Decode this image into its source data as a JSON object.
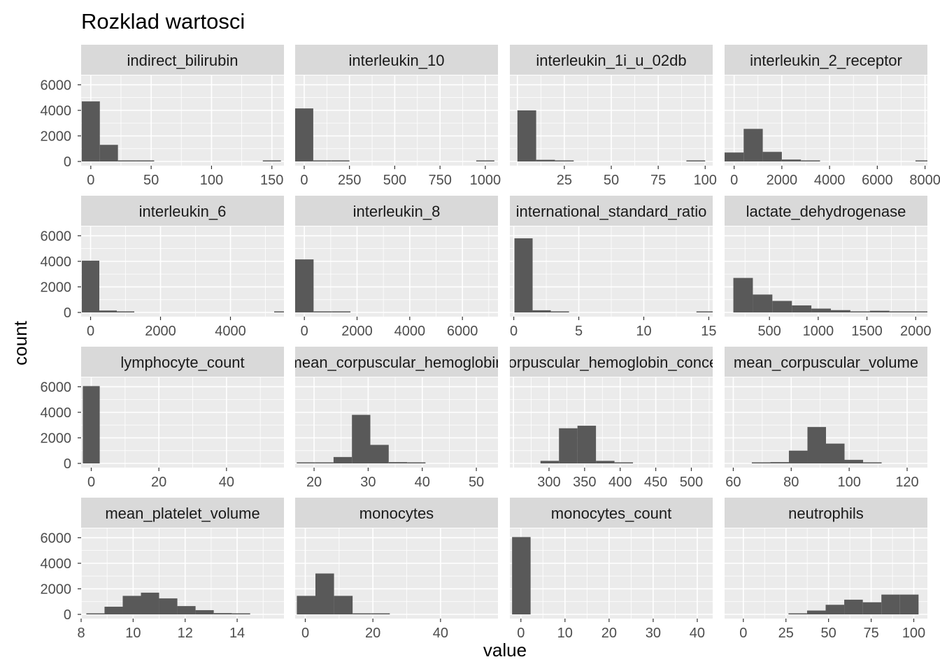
{
  "chart_data": {
    "type": "histogram-facets",
    "title": "Rozklad wartosci",
    "xlabel": "value",
    "ylabel": "count",
    "y_ticks": [
      0,
      2000,
      4000,
      6000
    ],
    "ylim": [
      0,
      6400
    ],
    "colors": {
      "panel_bg": "#ebebeb",
      "grid": "#ffffff",
      "strip_bg": "#d9d9d9",
      "bar": "#595959",
      "text": "#1a1a1a",
      "tick_text": "#4d4d4d"
    },
    "facets": [
      {
        "label": "indirect_bilirubin",
        "xlim": [
          -8,
          160
        ],
        "xticks": [
          0,
          50,
          100,
          150
        ],
        "bin_start": -7.5,
        "bin_width": 15,
        "counts": [
          4700,
          1300,
          80,
          10,
          0,
          0,
          0,
          0,
          0,
          0,
          5
        ]
      },
      {
        "label": "interleukin_10",
        "xlim": [
          -50,
          1070
        ],
        "xticks": [
          0,
          250,
          500,
          750,
          1000
        ],
        "bin_start": -50,
        "bin_width": 100,
        "counts": [
          4150,
          60,
          10,
          0,
          0,
          0,
          0,
          0,
          0,
          0,
          5
        ]
      },
      {
        "label": "interleukin_1i_u_02db",
        "xlim": [
          -4,
          104
        ],
        "xticks": [
          25,
          50,
          75,
          100
        ],
        "bin_start": 0,
        "bin_width": 10,
        "counts": [
          4000,
          130,
          10,
          0,
          0,
          0,
          0,
          0,
          0,
          5
        ]
      },
      {
        "label": "interleukin_2_receptor",
        "xlim": [
          -400,
          8100
        ],
        "xticks": [
          0,
          2000,
          4000,
          6000,
          8000
        ],
        "bin_start": -400,
        "bin_width": 800,
        "counts": [
          700,
          2550,
          750,
          150,
          10,
          0,
          0,
          0,
          0,
          0,
          5
        ]
      },
      {
        "label": "interleukin_6",
        "xlim": [
          -270,
          5530
        ],
        "xticks": [
          0,
          2000,
          4000
        ],
        "bin_start": -250,
        "bin_width": 500,
        "counts": [
          4050,
          150,
          10,
          0,
          0,
          0,
          0,
          0,
          0,
          0,
          0,
          80
        ]
      },
      {
        "label": "interleukin_8",
        "xlim": [
          -350,
          7350
        ],
        "xticks": [
          0,
          2000,
          4000,
          6000
        ],
        "bin_start": -350,
        "bin_width": 700,
        "counts": [
          4150,
          60,
          5,
          0,
          0,
          0,
          0,
          0,
          0,
          0,
          0
        ]
      },
      {
        "label": "international_standard_ratio",
        "xlim": [
          -0.3,
          15.3
        ],
        "xticks": [
          0,
          5,
          10,
          15
        ],
        "bin_start": 0.05,
        "bin_width": 1.4,
        "counts": [
          5800,
          170,
          60,
          0,
          0,
          0,
          0,
          0,
          0,
          0,
          5
        ]
      },
      {
        "label": "lactate_dehydrogenase",
        "xlim": [
          40,
          2120
        ],
        "xticks": [
          500,
          1000,
          1500,
          2000
        ],
        "bin_start": 130,
        "bin_width": 200,
        "counts": [
          2700,
          1400,
          900,
          550,
          300,
          180,
          60,
          130,
          60,
          50
        ]
      },
      {
        "label": "lymphocyte_count",
        "xlim": [
          -3,
          57
        ],
        "xticks": [
          0,
          20,
          40
        ],
        "bin_start": -2.5,
        "bin_width": 5,
        "counts": [
          6050,
          0,
          0,
          0,
          0,
          0,
          0,
          0,
          0,
          0,
          0
        ]
      },
      {
        "label": "mean_corpuscular_hemoglobin",
        "xlim": [
          16.5,
          54
        ],
        "xticks": [
          20,
          30,
          40,
          50
        ],
        "bin_start": 16.8,
        "bin_width": 3.4,
        "counts": [
          20,
          60,
          500,
          3800,
          1450,
          100,
          10,
          0,
          0,
          0,
          0
        ]
      },
      {
        "label": "mean_corpuscular_hemoglobin_concentration",
        "xlim": [
          245,
          530
        ],
        "xticks": [
          300,
          350,
          400,
          450,
          500
        ],
        "bin_start": 262,
        "bin_width": 26,
        "counts": [
          0,
          200,
          2750,
          2950,
          200,
          20,
          0,
          0,
          0,
          0,
          0
        ]
      },
      {
        "label": "mean_corpuscular_volume",
        "xlim": [
          57,
          127
        ],
        "xticks": [
          60,
          80,
          100,
          120
        ],
        "bin_start": 60,
        "bin_width": 6.4,
        "counts": [
          0,
          20,
          100,
          1000,
          2850,
          1550,
          280,
          40,
          0,
          0,
          0
        ]
      },
      {
        "label": "mean_platelet_volume",
        "xlim": [
          8,
          15.8
        ],
        "xticks": [
          8,
          10,
          12,
          14
        ],
        "bin_start": 8.2,
        "bin_width": 0.7,
        "counts": [
          30,
          600,
          1450,
          1700,
          1250,
          650,
          330,
          100,
          30,
          0,
          0
        ]
      },
      {
        "label": "monocytes",
        "xlim": [
          -3,
          57
        ],
        "xticks": [
          0,
          20,
          40
        ],
        "bin_start": -2.5,
        "bin_width": 5.5,
        "counts": [
          1450,
          3200,
          1450,
          60,
          5,
          0,
          0,
          0,
          0,
          0
        ]
      },
      {
        "label": "monocytes_count",
        "xlim": [
          -2.5,
          43.5
        ],
        "xticks": [
          0,
          10,
          20,
          30,
          40
        ],
        "bin_start": -2,
        "bin_width": 4.2,
        "counts": [
          6050,
          0,
          0,
          0,
          0,
          0,
          0,
          0,
          0,
          0
        ]
      },
      {
        "label": "neutrophils",
        "xlim": [
          -11,
          108
        ],
        "xticks": [
          0,
          25,
          50,
          75,
          100
        ],
        "bin_start": 26.5,
        "bin_width": 10.9,
        "counts": [
          40,
          300,
          750,
          1150,
          950,
          1550,
          1550
        ]
      }
    ]
  }
}
